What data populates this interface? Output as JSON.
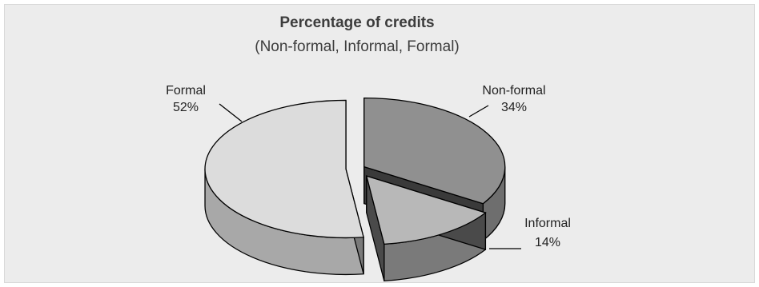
{
  "chart_data": {
    "type": "pie",
    "title": "Percentage of credits",
    "subtitle": "(Non-formal, Informal, Formal)",
    "slices": [
      {
        "label": "Non-formal",
        "value": 34,
        "display": "34%",
        "color": "#909090",
        "side": "#6e6e6e",
        "edge": "#3a3a3a"
      },
      {
        "label": "Informal",
        "value": 14,
        "display": "14%",
        "color": "#b8b8b8",
        "side": "#7a7a7a",
        "edge": "#4a4a4a"
      },
      {
        "label": "Formal",
        "value": 52,
        "display": "52%",
        "color": "#dcdcdc",
        "side": "#a8a8a8",
        "edge": "#7a7a7a"
      }
    ],
    "legend": "none",
    "style": "3d-exploded"
  }
}
